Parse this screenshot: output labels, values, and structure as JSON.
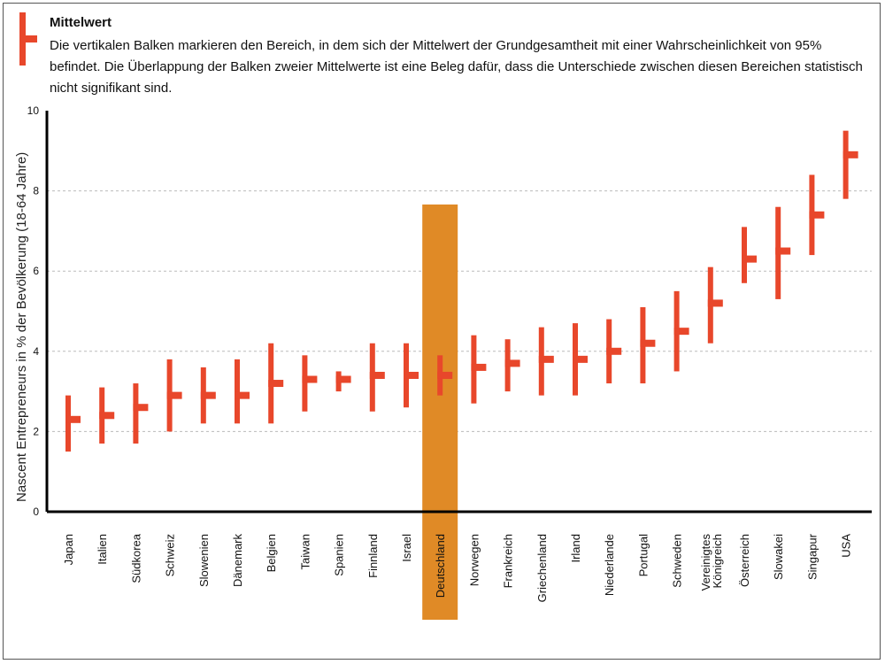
{
  "legend": {
    "title": "Mittelwert",
    "description": "Die vertikalen Balken markieren den Bereich, in dem sich der Mittelwert der Grundgesamtheit mit einer Wahrscheinlichkeit von 95% befindet. Die Überlappung der Balken zweier Mittelwerte ist eine Beleg dafür, dass die Unterschiede zwischen diesen Bereichen statistisch nicht signifikant sind."
  },
  "colors": {
    "bar": "#e8472b",
    "highlight": "#e08a26",
    "grid": "#bbbbbb",
    "axis": "#000000"
  },
  "chart_data": {
    "type": "error-bar",
    "title": "",
    "xlabel": "",
    "ylabel": "Nascent Entrepreneurs in % der Bevölkerung (18-64 Jahre)",
    "ylim": [
      0,
      10
    ],
    "yticks": [
      "0",
      "2",
      "4",
      "6",
      "8",
      "10"
    ],
    "grid": "horizontal dashed at 2,4,6,8",
    "highlight_category": "Deutschland",
    "categories": [
      "Japan",
      "Italien",
      "Südkorea",
      "Schweiz",
      "Slowenien",
      "Dänemark",
      "Belgien",
      "Taiwan",
      "Spanien",
      "Finnland",
      "Israel",
      "Deutschland",
      "Norwegen",
      "Frankreich",
      "Griechenland",
      "Irland",
      "Niederlande",
      "Portugal",
      "Schweden",
      "Vereinigtes Königreich",
      "Österreich",
      "Slowakei",
      "Singapur",
      "USA"
    ],
    "series": [
      {
        "mean": [
          2.3,
          2.4,
          2.6,
          2.9,
          2.9,
          2.9,
          3.2,
          3.3,
          3.3,
          3.4,
          3.4,
          3.4,
          3.6,
          3.7,
          3.8,
          3.8,
          4.0,
          4.2,
          4.5,
          5.2,
          6.3,
          6.5,
          7.4,
          8.9
        ],
        "low": [
          1.5,
          1.7,
          1.7,
          2.0,
          2.2,
          2.2,
          2.2,
          2.5,
          3.0,
          2.5,
          2.6,
          2.9,
          2.7,
          3.0,
          2.9,
          2.9,
          3.2,
          3.2,
          3.5,
          4.2,
          5.7,
          5.3,
          6.4,
          7.8
        ],
        "high": [
          2.9,
          3.1,
          3.2,
          3.8,
          3.6,
          3.8,
          4.2,
          3.9,
          3.5,
          4.2,
          4.2,
          3.9,
          4.4,
          4.3,
          4.6,
          4.7,
          4.8,
          5.1,
          5.5,
          6.1,
          7.1,
          7.6,
          8.4,
          9.5
        ]
      }
    ]
  }
}
